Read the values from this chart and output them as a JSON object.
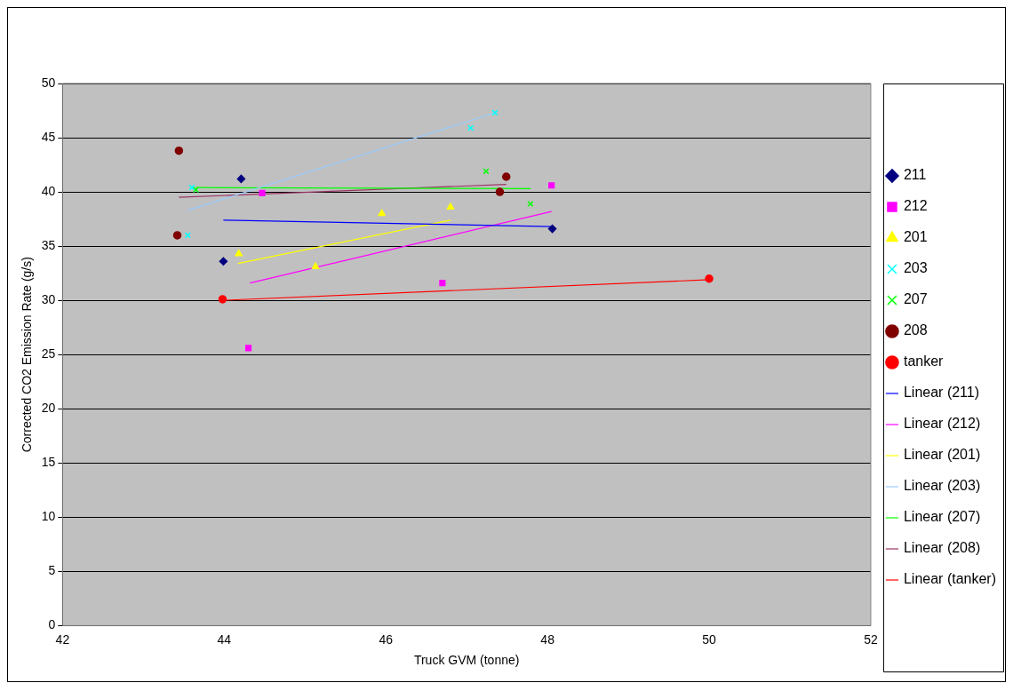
{
  "chart_data": {
    "type": "scatter",
    "xlabel": "Truck GVM (tonne)",
    "ylabel": "Corrected CO2 Emission Rate (g/s)",
    "xlim": [
      42,
      52
    ],
    "xticks": [
      42,
      44,
      46,
      48,
      50,
      52
    ],
    "ylim": [
      0,
      50
    ],
    "yticks": [
      0,
      5,
      10,
      15,
      20,
      25,
      30,
      35,
      40,
      45,
      50
    ],
    "grid": "y",
    "legend": "right",
    "series": [
      {
        "name": "211",
        "marker": "diamond",
        "color": "#000080",
        "x": [
          43.99,
          44.21,
          48.06
        ],
        "values": [
          33.6,
          41.2,
          36.6
        ]
      },
      {
        "name": "212",
        "marker": "square",
        "color": "#ff00ff",
        "x": [
          44.47,
          44.3,
          46.7,
          48.05
        ],
        "values": [
          39.9,
          25.6,
          31.6,
          40.6
        ]
      },
      {
        "name": "201",
        "marker": "triangle",
        "color": "#ffff00",
        "x": [
          44.18,
          45.13,
          45.95,
          46.8
        ],
        "values": [
          34.3,
          33.1,
          38.0,
          38.6
        ]
      },
      {
        "name": "203",
        "marker": "cross",
        "color": "#00ffff",
        "x": [
          43.6,
          43.55,
          47.05,
          47.35
        ],
        "values": [
          40.4,
          36.0,
          45.9,
          47.3
        ]
      },
      {
        "name": "207",
        "marker": "cross",
        "color": "#00ff00",
        "x": [
          43.65,
          47.24,
          47.79
        ],
        "values": [
          40.2,
          41.9,
          38.9
        ]
      },
      {
        "name": "208",
        "marker": "circle",
        "color": "#800000",
        "x": [
          43.44,
          43.42,
          47.41,
          47.49
        ],
        "values": [
          43.8,
          36.0,
          40.0,
          41.4
        ]
      },
      {
        "name": "tanker",
        "marker": "circle",
        "color": "#ff0000",
        "x": [
          43.98,
          50.0
        ],
        "values": [
          30.1,
          32.0
        ]
      },
      {
        "name": "Linear (211)",
        "type": "line",
        "color": "#0000ff",
        "x": [
          43.99,
          48.06
        ],
        "values": [
          37.4,
          36.8
        ]
      },
      {
        "name": "Linear (212)",
        "type": "line",
        "color": "#ff00ff",
        "x": [
          44.32,
          48.05
        ],
        "values": [
          31.6,
          38.2
        ]
      },
      {
        "name": "Linear (201)",
        "type": "line",
        "color": "#ffff00",
        "x": [
          44.17,
          46.8
        ],
        "values": [
          33.4,
          37.4
        ]
      },
      {
        "name": "Linear (203)",
        "type": "line",
        "color": "#99ccff",
        "x": [
          43.55,
          47.35
        ],
        "values": [
          38.3,
          47.3
        ]
      },
      {
        "name": "Linear (207)",
        "type": "line",
        "color": "#00ff00",
        "x": [
          43.65,
          47.79
        ],
        "values": [
          40.4,
          40.3
        ]
      },
      {
        "name": "Linear (208)",
        "type": "line",
        "color": "#993366",
        "x": [
          43.44,
          47.49
        ],
        "values": [
          39.5,
          40.7
        ]
      },
      {
        "name": "Linear (tanker)",
        "type": "line",
        "color": "#ff0000",
        "x": [
          43.98,
          50.0
        ],
        "values": [
          30.0,
          31.9
        ]
      }
    ]
  }
}
